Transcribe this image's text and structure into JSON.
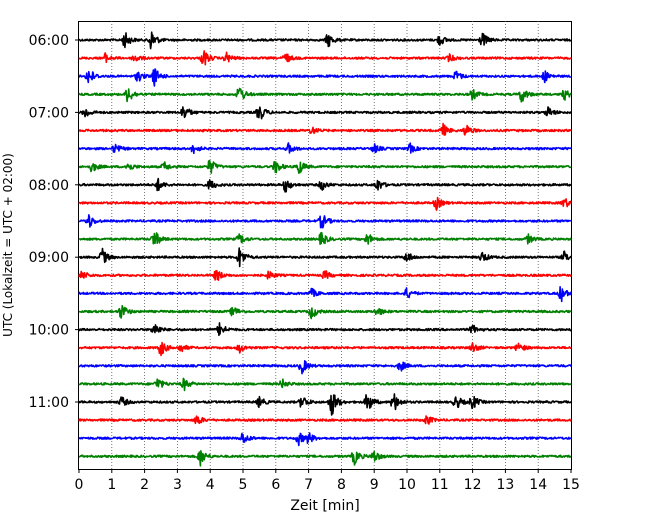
{
  "chart_data": {
    "type": "line",
    "xlabel": "Zeit  [min]",
    "ylabel": "UTC (Lokalzeit = UTC + 02:00)",
    "xlim": [
      0,
      15
    ],
    "x_ticks": [
      "0",
      "1",
      "2",
      "3",
      "4",
      "5",
      "6",
      "7",
      "8",
      "9",
      "10",
      "11",
      "12",
      "13",
      "14",
      "15"
    ],
    "y_tick_labels": [
      "06:00",
      "07:00",
      "08:00",
      "09:00",
      "10:00",
      "11:00"
    ],
    "grid": "vertical dotted",
    "trace_interval_min": 15,
    "trace_colors": [
      "#000000",
      "#ff0000",
      "#0000ff",
      "#008000"
    ],
    "traces": [
      {
        "start": "06:00",
        "color": "#000000",
        "events": [
          [
            1.4,
            0.45
          ],
          [
            2.2,
            0.6
          ],
          [
            7.6,
            0.4
          ],
          [
            11.0,
            0.3
          ],
          [
            12.3,
            0.4
          ]
        ]
      },
      {
        "start": "06:15",
        "color": "#ff0000",
        "events": [
          [
            0.8,
            0.25
          ],
          [
            1.7,
            0.25
          ],
          [
            3.8,
            0.5
          ],
          [
            4.5,
            0.3
          ],
          [
            6.3,
            0.3
          ],
          [
            11.3,
            0.2
          ]
        ]
      },
      {
        "start": "06:30",
        "color": "#0000ff",
        "events": [
          [
            0.3,
            0.5
          ],
          [
            1.8,
            0.3
          ],
          [
            2.3,
            0.5
          ],
          [
            11.5,
            0.3
          ],
          [
            14.2,
            0.3
          ]
        ]
      },
      {
        "start": "06:45",
        "color": "#008000",
        "events": [
          [
            1.5,
            0.5
          ],
          [
            4.9,
            0.5
          ],
          [
            12.0,
            0.3
          ],
          [
            13.5,
            0.45
          ],
          [
            14.8,
            0.3
          ]
        ]
      },
      {
        "start": "07:00",
        "color": "#000000",
        "events": [
          [
            0.2,
            0.3
          ],
          [
            3.2,
            0.45
          ],
          [
            5.5,
            0.5
          ],
          [
            14.3,
            0.3
          ]
        ]
      },
      {
        "start": "07:15",
        "color": "#ff0000",
        "events": [
          [
            7.1,
            0.2
          ],
          [
            11.1,
            0.35
          ],
          [
            11.8,
            0.35
          ]
        ]
      },
      {
        "start": "07:30",
        "color": "#0000ff",
        "events": [
          [
            1.1,
            0.25
          ],
          [
            3.5,
            0.25
          ],
          [
            6.4,
            0.3
          ],
          [
            9.0,
            0.25
          ],
          [
            10.1,
            0.25
          ]
        ]
      },
      {
        "start": "07:45",
        "color": "#008000",
        "events": [
          [
            0.4,
            0.3
          ],
          [
            1.5,
            0.25
          ],
          [
            2.6,
            0.25
          ],
          [
            4.0,
            0.45
          ],
          [
            6.0,
            0.4
          ],
          [
            6.7,
            0.45
          ]
        ]
      },
      {
        "start": "08:00",
        "color": "#000000",
        "events": [
          [
            2.4,
            0.35
          ],
          [
            4.0,
            0.3
          ],
          [
            6.3,
            0.4
          ],
          [
            7.4,
            0.3
          ],
          [
            9.1,
            0.35
          ]
        ]
      },
      {
        "start": "08:15",
        "color": "#ff0000",
        "events": [
          [
            10.9,
            0.35
          ],
          [
            14.8,
            0.3
          ]
        ]
      },
      {
        "start": "08:30",
        "color": "#0000ff",
        "events": [
          [
            0.3,
            0.4
          ],
          [
            7.4,
            0.45
          ]
        ]
      },
      {
        "start": "08:45",
        "color": "#008000",
        "events": [
          [
            2.3,
            0.5
          ],
          [
            4.9,
            0.3
          ],
          [
            7.4,
            0.4
          ],
          [
            8.8,
            0.35
          ],
          [
            13.7,
            0.25
          ]
        ]
      },
      {
        "start": "09:00",
        "color": "#000000",
        "events": [
          [
            0.7,
            0.5
          ],
          [
            4.9,
            0.6
          ],
          [
            10.0,
            0.3
          ],
          [
            12.3,
            0.3
          ],
          [
            14.8,
            0.3
          ]
        ]
      },
      {
        "start": "09:15",
        "color": "#ff0000",
        "events": [
          [
            0.1,
            0.25
          ],
          [
            4.2,
            0.35
          ],
          [
            5.8,
            0.25
          ],
          [
            7.5,
            0.25
          ]
        ]
      },
      {
        "start": "09:30",
        "color": "#0000ff",
        "events": [
          [
            7.1,
            0.25
          ],
          [
            10.0,
            0.3
          ],
          [
            14.7,
            0.45
          ]
        ]
      },
      {
        "start": "09:45",
        "color": "#008000",
        "events": [
          [
            1.3,
            0.45
          ],
          [
            4.7,
            0.3
          ],
          [
            7.1,
            0.4
          ],
          [
            9.1,
            0.25
          ]
        ]
      },
      {
        "start": "10:00",
        "color": "#000000",
        "events": [
          [
            2.3,
            0.4
          ],
          [
            4.3,
            0.4
          ],
          [
            12.0,
            0.25
          ]
        ]
      },
      {
        "start": "10:15",
        "color": "#ff0000",
        "events": [
          [
            2.5,
            0.45
          ],
          [
            3.1,
            0.25
          ],
          [
            4.9,
            0.25
          ],
          [
            12.0,
            0.3
          ],
          [
            13.4,
            0.3
          ]
        ]
      },
      {
        "start": "10:30",
        "color": "#0000ff",
        "events": [
          [
            6.8,
            0.45
          ],
          [
            9.8,
            0.3
          ]
        ]
      },
      {
        "start": "10:45",
        "color": "#008000",
        "events": [
          [
            2.4,
            0.35
          ],
          [
            3.2,
            0.35
          ],
          [
            6.2,
            0.25
          ]
        ]
      },
      {
        "start": "11:00",
        "color": "#000000",
        "events": [
          [
            1.3,
            0.3
          ],
          [
            5.5,
            0.3
          ],
          [
            6.8,
            0.4
          ],
          [
            7.7,
            0.8
          ],
          [
            8.8,
            0.6
          ],
          [
            9.6,
            0.55
          ],
          [
            11.5,
            0.4
          ],
          [
            12.0,
            0.4
          ]
        ]
      },
      {
        "start": "11:15",
        "color": "#ff0000",
        "events": [
          [
            3.6,
            0.3
          ],
          [
            10.6,
            0.3
          ]
        ]
      },
      {
        "start": "11:30",
        "color": "#0000ff",
        "events": [
          [
            5.0,
            0.35
          ],
          [
            6.7,
            0.35
          ],
          [
            7.0,
            0.3
          ]
        ]
      },
      {
        "start": "11:45",
        "color": "#008000",
        "events": [
          [
            3.7,
            0.5
          ],
          [
            8.4,
            0.45
          ],
          [
            9.0,
            0.35
          ]
        ]
      }
    ]
  }
}
